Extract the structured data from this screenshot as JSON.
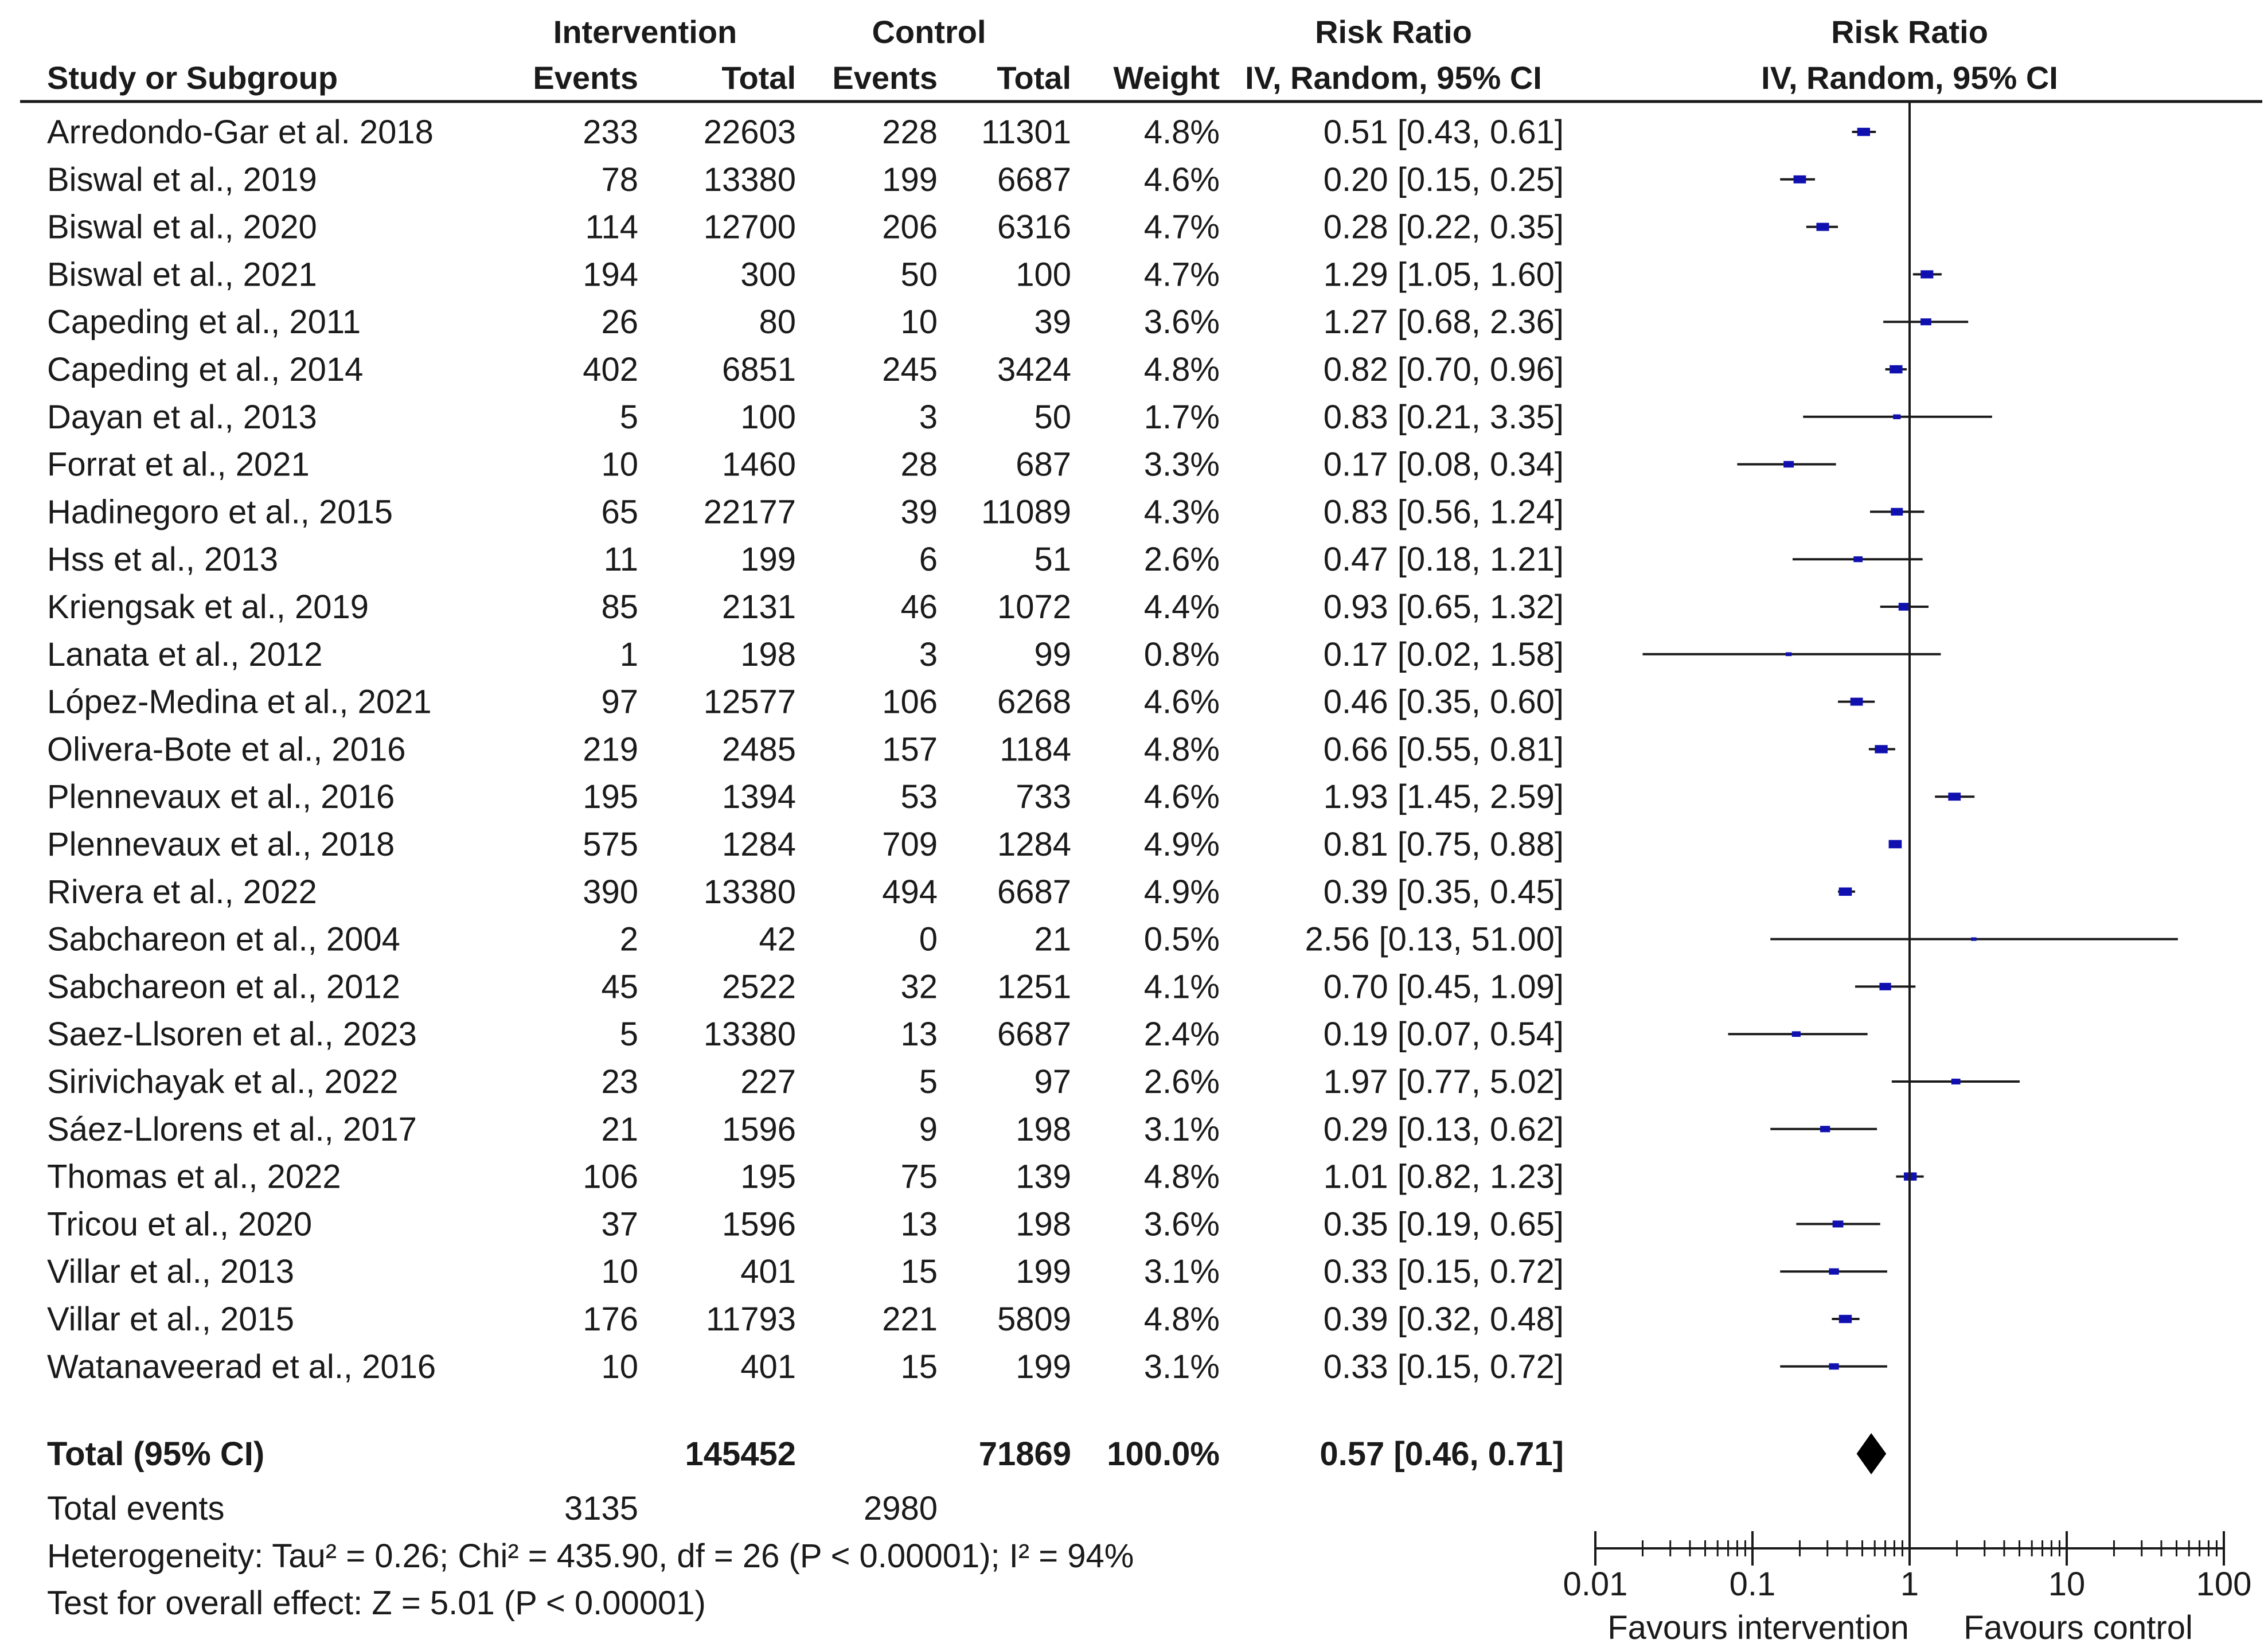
{
  "chart_data": {
    "type": "forest",
    "headers": {
      "study": "Study or Subgroup",
      "intervention": "Intervention",
      "control": "Control",
      "events": "Events",
      "total": "Total",
      "weight": "Weight",
      "ratio_group": "Risk Ratio",
      "ratio_method": "IV, Random, 95% CI"
    },
    "studies": [
      {
        "study": "Arredondo-Gar et al. 2018",
        "e1": "233",
        "n1": "22603",
        "e2": "228",
        "n2": "11301",
        "weight": "4.8%",
        "ci_text": "0.51 [0.43, 0.61]",
        "rr": 0.51,
        "lo": 0.43,
        "hi": 0.61
      },
      {
        "study": "Biswal et al., 2019",
        "e1": "78",
        "n1": "13380",
        "e2": "199",
        "n2": "6687",
        "weight": "4.6%",
        "ci_text": "0.20 [0.15, 0.25]",
        "rr": 0.2,
        "lo": 0.15,
        "hi": 0.25
      },
      {
        "study": "Biswal et al., 2020",
        "e1": "114",
        "n1": "12700",
        "e2": "206",
        "n2": "6316",
        "weight": "4.7%",
        "ci_text": "0.28 [0.22, 0.35]",
        "rr": 0.28,
        "lo": 0.22,
        "hi": 0.35
      },
      {
        "study": "Biswal et al., 2021",
        "e1": "194",
        "n1": "300",
        "e2": "50",
        "n2": "100",
        "weight": "4.7%",
        "ci_text": "1.29 [1.05, 1.60]",
        "rr": 1.29,
        "lo": 1.05,
        "hi": 1.6
      },
      {
        "study": "Capeding et al., 2011",
        "e1": "26",
        "n1": "80",
        "e2": "10",
        "n2": "39",
        "weight": "3.6%",
        "ci_text": "1.27 [0.68, 2.36]",
        "rr": 1.27,
        "lo": 0.68,
        "hi": 2.36
      },
      {
        "study": "Capeding et al., 2014",
        "e1": "402",
        "n1": "6851",
        "e2": "245",
        "n2": "3424",
        "weight": "4.8%",
        "ci_text": "0.82 [0.70, 0.96]",
        "rr": 0.82,
        "lo": 0.7,
        "hi": 0.96
      },
      {
        "study": "Dayan et al., 2013",
        "e1": "5",
        "n1": "100",
        "e2": "3",
        "n2": "50",
        "weight": "1.7%",
        "ci_text": "0.83 [0.21, 3.35]",
        "rr": 0.83,
        "lo": 0.21,
        "hi": 3.35
      },
      {
        "study": "Forrat et al., 2021",
        "e1": "10",
        "n1": "1460",
        "e2": "28",
        "n2": "687",
        "weight": "3.3%",
        "ci_text": "0.17 [0.08, 0.34]",
        "rr": 0.17,
        "lo": 0.08,
        "hi": 0.34
      },
      {
        "study": "Hadinegoro et al., 2015",
        "e1": "65",
        "n1": "22177",
        "e2": "39",
        "n2": "11089",
        "weight": "4.3%",
        "ci_text": "0.83 [0.56, 1.24]",
        "rr": 0.83,
        "lo": 0.56,
        "hi": 1.24
      },
      {
        "study": "Hss et al., 2013",
        "e1": "11",
        "n1": "199",
        "e2": "6",
        "n2": "51",
        "weight": "2.6%",
        "ci_text": "0.47 [0.18, 1.21]",
        "rr": 0.47,
        "lo": 0.18,
        "hi": 1.21
      },
      {
        "study": "Kriengsak et al., 2019",
        "e1": "85",
        "n1": "2131",
        "e2": "46",
        "n2": "1072",
        "weight": "4.4%",
        "ci_text": "0.93 [0.65, 1.32]",
        "rr": 0.93,
        "lo": 0.65,
        "hi": 1.32
      },
      {
        "study": "Lanata et al., 2012",
        "e1": "1",
        "n1": "198",
        "e2": "3",
        "n2": "99",
        "weight": "0.8%",
        "ci_text": "0.17 [0.02, 1.58]",
        "rr": 0.17,
        "lo": 0.02,
        "hi": 1.58
      },
      {
        "study": "López-Medina et al., 2021",
        "e1": "97",
        "n1": "12577",
        "e2": "106",
        "n2": "6268",
        "weight": "4.6%",
        "ci_text": "0.46 [0.35, 0.60]",
        "rr": 0.46,
        "lo": 0.35,
        "hi": 0.6
      },
      {
        "study": "Olivera-Bote et al., 2016",
        "e1": "219",
        "n1": "2485",
        "e2": "157",
        "n2": "1184",
        "weight": "4.8%",
        "ci_text": "0.66 [0.55, 0.81]",
        "rr": 0.66,
        "lo": 0.55,
        "hi": 0.81
      },
      {
        "study": "Plennevaux et al., 2016",
        "e1": "195",
        "n1": "1394",
        "e2": "53",
        "n2": "733",
        "weight": "4.6%",
        "ci_text": "1.93 [1.45, 2.59]",
        "rr": 1.93,
        "lo": 1.45,
        "hi": 2.59
      },
      {
        "study": "Plennevaux et al., 2018",
        "e1": "575",
        "n1": "1284",
        "e2": "709",
        "n2": "1284",
        "weight": "4.9%",
        "ci_text": "0.81 [0.75, 0.88]",
        "rr": 0.81,
        "lo": 0.75,
        "hi": 0.88
      },
      {
        "study": "Rivera et al., 2022",
        "e1": "390",
        "n1": "13380",
        "e2": "494",
        "n2": "6687",
        "weight": "4.9%",
        "ci_text": "0.39 [0.35, 0.45]",
        "rr": 0.39,
        "lo": 0.35,
        "hi": 0.45
      },
      {
        "study": "Sabchareon et al., 2004",
        "e1": "2",
        "n1": "42",
        "e2": "0",
        "n2": "21",
        "weight": "0.5%",
        "ci_text": "2.56 [0.13, 51.00]",
        "rr": 2.56,
        "lo": 0.13,
        "hi": 51.0
      },
      {
        "study": "Sabchareon et al., 2012",
        "e1": "45",
        "n1": "2522",
        "e2": "32",
        "n2": "1251",
        "weight": "4.1%",
        "ci_text": "0.70 [0.45, 1.09]",
        "rr": 0.7,
        "lo": 0.45,
        "hi": 1.09
      },
      {
        "study": "Saez-Llsoren et al., 2023",
        "e1": "5",
        "n1": "13380",
        "e2": "13",
        "n2": "6687",
        "weight": "2.4%",
        "ci_text": "0.19 [0.07, 0.54]",
        "rr": 0.19,
        "lo": 0.07,
        "hi": 0.54
      },
      {
        "study": "Sirivichayak et al., 2022",
        "e1": "23",
        "n1": "227",
        "e2": "5",
        "n2": "97",
        "weight": "2.6%",
        "ci_text": "1.97 [0.77, 5.02]",
        "rr": 1.97,
        "lo": 0.77,
        "hi": 5.02
      },
      {
        "study": "Sáez-Llorens et al., 2017",
        "e1": "21",
        "n1": "1596",
        "e2": "9",
        "n2": "198",
        "weight": "3.1%",
        "ci_text": "0.29 [0.13, 0.62]",
        "rr": 0.29,
        "lo": 0.13,
        "hi": 0.62
      },
      {
        "study": "Thomas et al., 2022",
        "e1": "106",
        "n1": "195",
        "e2": "75",
        "n2": "139",
        "weight": "4.8%",
        "ci_text": "1.01 [0.82, 1.23]",
        "rr": 1.01,
        "lo": 0.82,
        "hi": 1.23
      },
      {
        "study": "Tricou et al., 2020",
        "e1": "37",
        "n1": "1596",
        "e2": "13",
        "n2": "198",
        "weight": "3.6%",
        "ci_text": "0.35 [0.19, 0.65]",
        "rr": 0.35,
        "lo": 0.19,
        "hi": 0.65
      },
      {
        "study": "Villar et al., 2013",
        "e1": "10",
        "n1": "401",
        "e2": "15",
        "n2": "199",
        "weight": "3.1%",
        "ci_text": "0.33 [0.15, 0.72]",
        "rr": 0.33,
        "lo": 0.15,
        "hi": 0.72
      },
      {
        "study": "Villar et al., 2015",
        "e1": "176",
        "n1": "11793",
        "e2": "221",
        "n2": "5809",
        "weight": "4.8%",
        "ci_text": "0.39 [0.32, 0.48]",
        "rr": 0.39,
        "lo": 0.32,
        "hi": 0.48
      },
      {
        "study": "Watanaveerad et al., 2016",
        "e1": "10",
        "n1": "401",
        "e2": "15",
        "n2": "199",
        "weight": "3.1%",
        "ci_text": "0.33 [0.15, 0.72]",
        "rr": 0.33,
        "lo": 0.15,
        "hi": 0.72
      }
    ],
    "total": {
      "label": "Total (95% CI)",
      "n1": "145452",
      "n2": "71869",
      "weight": "100.0%",
      "ci_text": "0.57 [0.46, 0.71]",
      "rr": 0.57,
      "lo": 0.46,
      "hi": 0.71
    },
    "total_events": {
      "label": "Total events",
      "e1": "3135",
      "e2": "2980"
    },
    "heterogeneity": "Heterogeneity: Tau² = 0.26; Chi² = 435.90, df = 26 (P < 0.00001); I² = 94%",
    "overall_effect": "Test for overall effect: Z = 5.01 (P < 0.00001)",
    "axis": {
      "scale": "log",
      "range": [
        0.01,
        100
      ],
      "ticks": [
        0.01,
        0.1,
        1,
        10,
        100
      ],
      "tick_labels": [
        "0.01",
        "0.1",
        "1",
        "10",
        "100"
      ],
      "favours_left": "Favours intervention",
      "favours_right": "Favours control"
    },
    "colors": {
      "text": "#1a1a1a",
      "point": "#1010b0",
      "lines": "#1a1a1a"
    }
  }
}
